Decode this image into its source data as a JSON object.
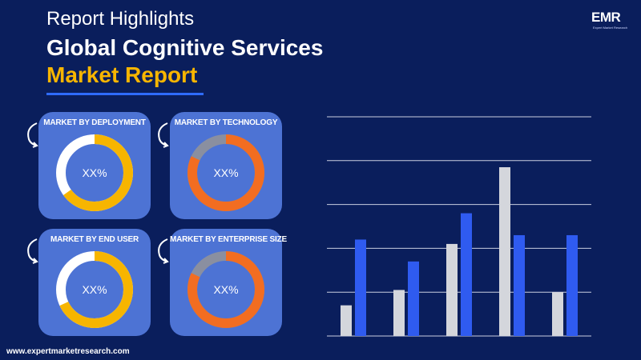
{
  "header": {
    "subtitle": "Report Highlights",
    "title_line1": "Global Cognitive Services",
    "title_line2": "Market Report"
  },
  "logo": {
    "text": "EMR",
    "tagline": "Expert Market Research"
  },
  "cards": [
    {
      "title": "MARKET BY DEPLOYMENT",
      "value": "XX%",
      "ring_color": "#f7b500",
      "track_color": "#ffffff",
      "fill_fraction": 0.65
    },
    {
      "title": "MARKET BY TECHNOLOGY",
      "value": "XX%",
      "ring_color": "#f26d21",
      "track_color": "#8a8fa0",
      "fill_fraction": 0.82
    },
    {
      "title": "MARKET BY END USER",
      "value": "XX%",
      "ring_color": "#f7b500",
      "track_color": "#ffffff",
      "fill_fraction": 0.68
    },
    {
      "title": "MARKET BY ENTERPRISE SIZE",
      "value": "XX%",
      "ring_color": "#f26d21",
      "track_color": "#8a8fa0",
      "fill_fraction": 0.82
    }
  ],
  "footer": {
    "url": "www.expertmarketresearch.com"
  },
  "chart_data": {
    "type": "bar",
    "categories": [
      "",
      "",
      "",
      "",
      ""
    ],
    "series": [
      {
        "color": "#d4d6dc",
        "values": [
          0.7,
          1.05,
          2.1,
          3.85,
          1.0
        ]
      },
      {
        "color": "#2f5bf0",
        "values": [
          2.2,
          1.7,
          2.8,
          2.3,
          2.3
        ]
      }
    ],
    "ylim": [
      0,
      5
    ],
    "grid": true,
    "xlabel": "",
    "ylabel": ""
  },
  "colors": {
    "background": "#0a1e5c",
    "card": "#4d73d4",
    "accent_gold": "#f7b500",
    "accent_blue": "#2f6bff"
  }
}
